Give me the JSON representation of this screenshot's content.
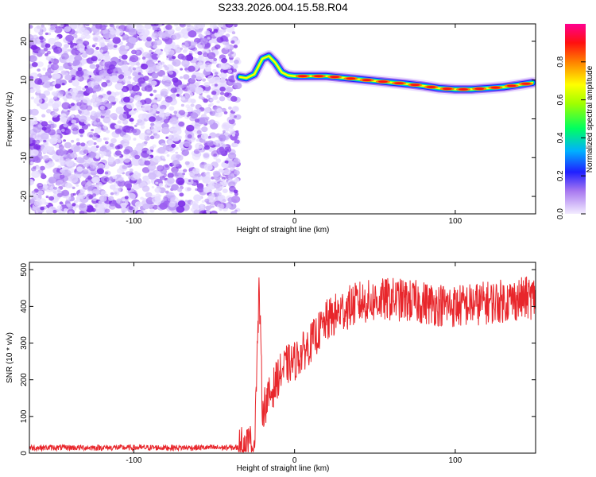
{
  "chart_data": [
    {
      "type": "heatmap",
      "title": "S233.2026.004.15.58.R04",
      "xlabel": "Height of straight line (km)",
      "ylabel": "Frequency (Hz)",
      "xlim": [
        -165,
        150
      ],
      "ylim": [
        -24.5,
        24.5
      ],
      "x_ticks": [
        -100,
        0,
        100
      ],
      "y_ticks": [
        -20,
        -10,
        0,
        10,
        20
      ],
      "noise_region_x": [
        -165,
        -35
      ],
      "ridge": {
        "x": [
          -34,
          -30,
          -25,
          -20,
          -16,
          -12,
          -8,
          -4,
          0,
          10,
          20,
          30,
          40,
          50,
          60,
          70,
          80,
          90,
          100,
          110,
          120,
          130,
          140,
          148
        ],
        "freq": [
          10.8,
          10.5,
          11.5,
          15.5,
          16.2,
          14.5,
          12.0,
          11.2,
          11.0,
          11.0,
          11.0,
          10.6,
          10.2,
          9.8,
          9.4,
          9.0,
          8.5,
          7.9,
          7.6,
          7.6,
          7.9,
          8.2,
          8.8,
          9.3
        ]
      },
      "colorbar": {
        "label": "Normalized spectral amplitude",
        "ticks": [
          "0.0",
          "0.2",
          "0.4",
          "0.6",
          "0.8"
        ],
        "range": [
          0,
          1
        ]
      }
    },
    {
      "type": "line",
      "xlabel": "Height of straight line (km)",
      "ylabel": "SNR (10 * v/v)",
      "xlim": [
        -165,
        150
      ],
      "ylim": [
        0,
        520
      ],
      "x_ticks": [
        -100,
        0,
        100
      ],
      "y_ticks": [
        0,
        100,
        200,
        300,
        400,
        500
      ],
      "series": [
        {
          "name": "SNR",
          "color": "#e8262b",
          "x": [
            -165,
            -35,
            -25,
            -22,
            -20,
            -15,
            -10,
            -5,
            0,
            10,
            20,
            30,
            40,
            60,
            80,
            100,
            120,
            140,
            150
          ],
          "values": [
            15,
            15,
            30,
            450,
            120,
            160,
            210,
            240,
            250,
            300,
            360,
            390,
            410,
            420,
            410,
            400,
            410,
            420,
            425
          ]
        }
      ]
    }
  ]
}
